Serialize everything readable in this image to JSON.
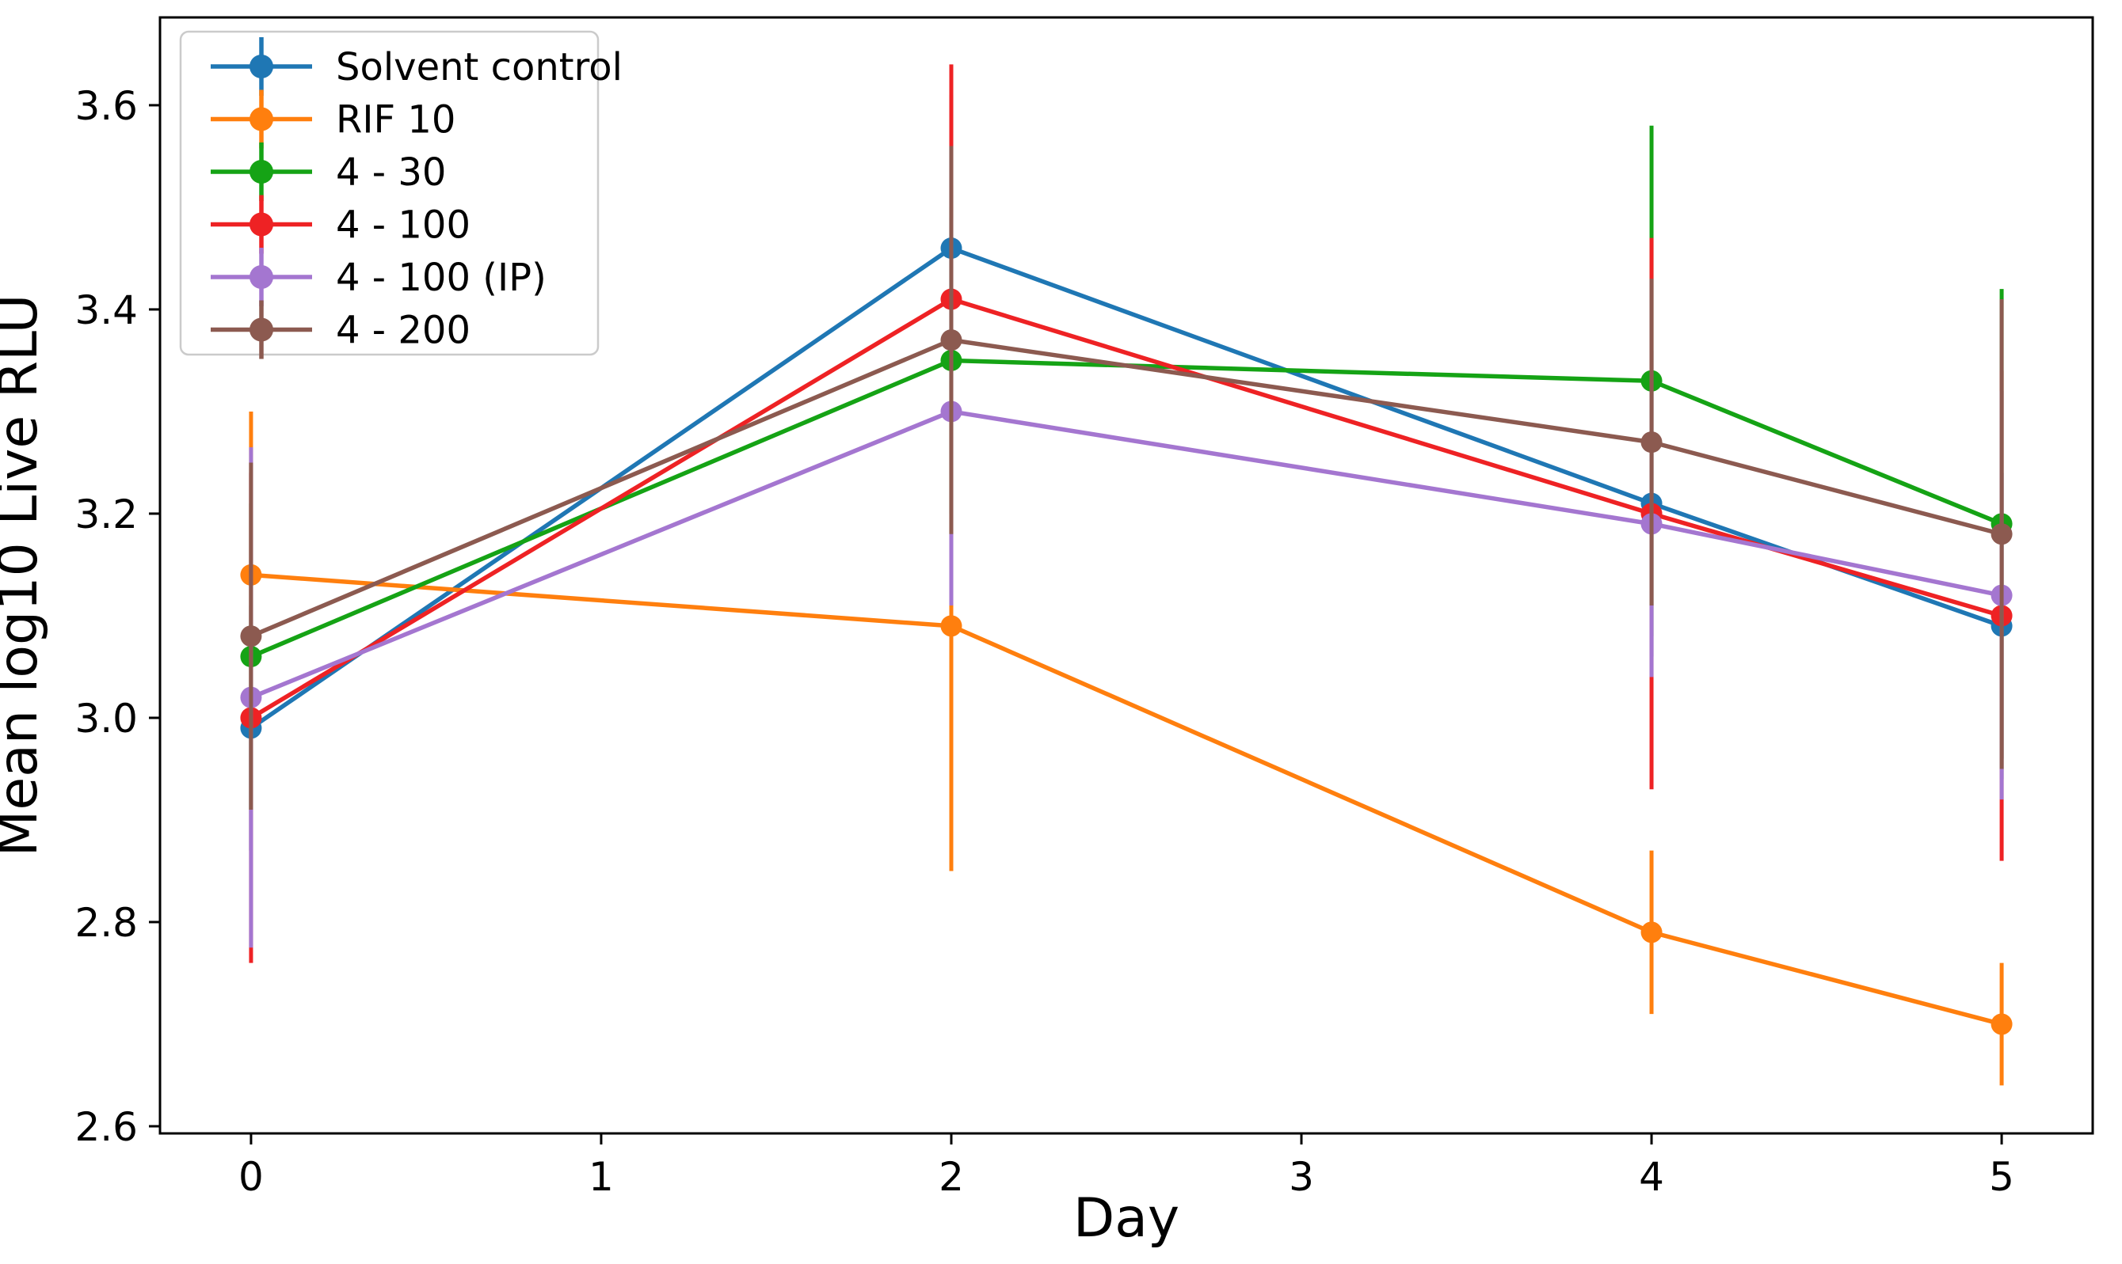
{
  "figure": {
    "background": "#ffffff",
    "spine_color": "#000000",
    "tick_color": "#000000",
    "legend_border_color": "#cbcbcb",
    "legend_background": "#ffffff"
  },
  "chart_data": {
    "type": "line",
    "title": "",
    "xlabel": "Day",
    "ylabel": "Mean log10 Live RLU",
    "x": [
      0,
      2,
      4,
      5
    ],
    "xticks": [
      0,
      1,
      2,
      3,
      4,
      5
    ],
    "yticks": [
      2.6,
      2.8,
      3.0,
      3.2,
      3.4,
      3.6
    ],
    "xlim": [
      -0.26,
      5.26
    ],
    "ylim": [
      2.593,
      3.686
    ],
    "grid": false,
    "legend_position": "upper left",
    "error_bars": true,
    "series": [
      {
        "name": "Solvent control",
        "color": "#1f77b4",
        "values": [
          2.99,
          3.46,
          3.21,
          3.09
        ],
        "yerr": [
          0.12,
          0.15,
          0.15,
          0.15
        ]
      },
      {
        "name": "RIF 10",
        "color": "#ff7f0e",
        "values": [
          3.14,
          3.09,
          2.79,
          2.7
        ],
        "yerr": [
          0.16,
          0.24,
          0.08,
          0.06
        ]
      },
      {
        "name": "4 - 30",
        "color": "#15a315",
        "values": [
          3.06,
          3.35,
          3.33,
          3.19
        ],
        "yerr": [
          0.15,
          0.15,
          0.25,
          0.23
        ]
      },
      {
        "name": "4 - 100",
        "color": "#ee2224",
        "values": [
          3.0,
          3.41,
          3.2,
          3.1
        ],
        "yerr": [
          0.24,
          0.23,
          0.27,
          0.24
        ]
      },
      {
        "name": "4 - 100 (IP)",
        "color": "#a476d0",
        "values": [
          3.02,
          3.3,
          3.19,
          3.12
        ],
        "yerr": [
          0.245,
          0.19,
          0.15,
          0.2
        ]
      },
      {
        "name": "4 - 200",
        "color": "#8c5a50",
        "values": [
          3.08,
          3.37,
          3.27,
          3.18
        ],
        "yerr": [
          0.17,
          0.19,
          0.16,
          0.23
        ]
      }
    ]
  }
}
